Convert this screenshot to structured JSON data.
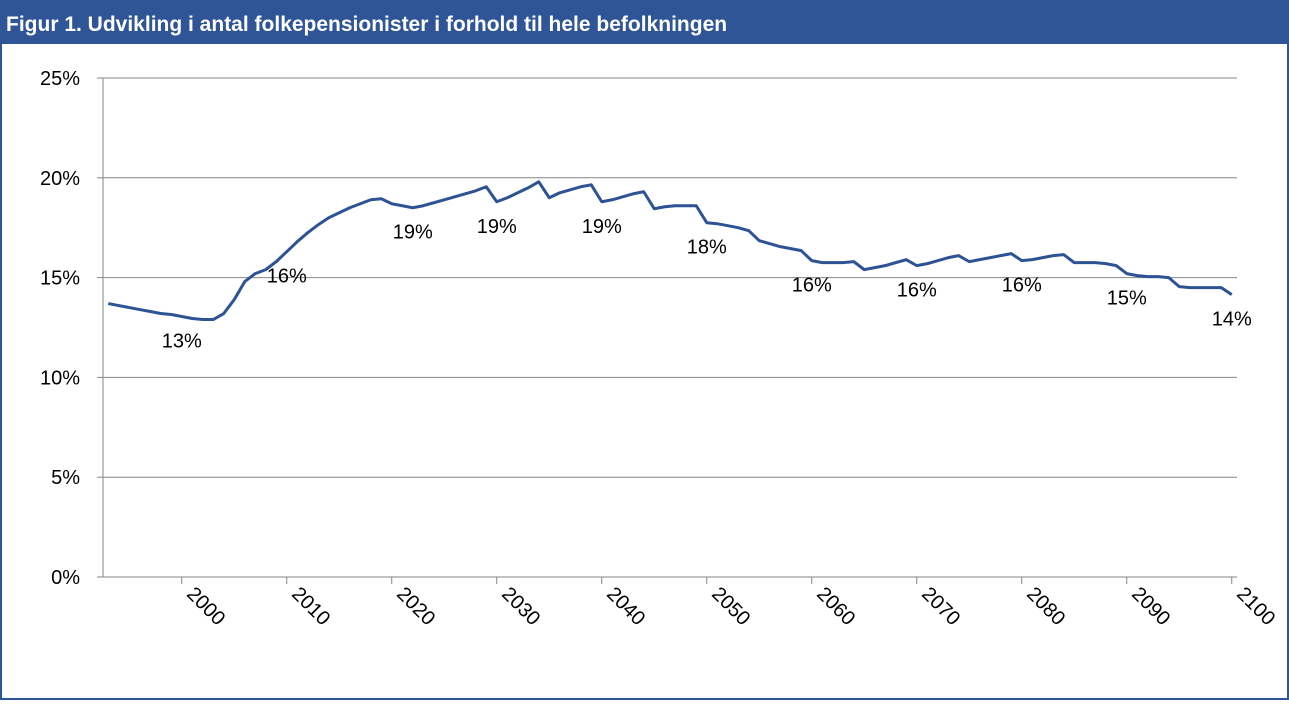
{
  "chart_data": {
    "type": "line",
    "title": "Figur 1. Udvikling i antal folkepensionister i forhold til hele befolkningen",
    "x": [
      1993,
      1994,
      1995,
      1996,
      1997,
      1998,
      1999,
      2000,
      2001,
      2002,
      2003,
      2004,
      2005,
      2006,
      2007,
      2008,
      2009,
      2010,
      2011,
      2012,
      2013,
      2014,
      2015,
      2016,
      2017,
      2018,
      2019,
      2020,
      2021,
      2022,
      2023,
      2024,
      2025,
      2026,
      2027,
      2028,
      2029,
      2030,
      2031,
      2032,
      2033,
      2034,
      2035,
      2036,
      2037,
      2038,
      2039,
      2040,
      2041,
      2042,
      2043,
      2044,
      2045,
      2046,
      2047,
      2048,
      2049,
      2050,
      2051,
      2052,
      2053,
      2054,
      2055,
      2056,
      2057,
      2058,
      2059,
      2060,
      2061,
      2062,
      2063,
      2064,
      2065,
      2066,
      2067,
      2068,
      2069,
      2070,
      2071,
      2072,
      2073,
      2074,
      2075,
      2076,
      2077,
      2078,
      2079,
      2080,
      2081,
      2082,
      2083,
      2084,
      2085,
      2086,
      2087,
      2088,
      2089,
      2090,
      2091,
      2092,
      2093,
      2094,
      2095,
      2096,
      2097,
      2098,
      2099,
      2100
    ],
    "series": [
      {
        "color": "#2e5395",
        "values": [
          13.7,
          13.6,
          13.5,
          13.4,
          13.3,
          13.2,
          13.15,
          13.05,
          12.95,
          12.9,
          12.9,
          13.2,
          13.9,
          14.8,
          15.2,
          15.4,
          15.8,
          16.3,
          16.8,
          17.25,
          17.65,
          18.0,
          18.25,
          18.5,
          18.7,
          18.9,
          18.95,
          18.7,
          18.6,
          18.5,
          18.6,
          18.75,
          18.9,
          19.05,
          19.2,
          19.35,
          19.55,
          18.8,
          19.0,
          19.25,
          19.5,
          19.8,
          19.0,
          19.25,
          19.4,
          19.55,
          19.65,
          18.8,
          18.9,
          19.05,
          19.2,
          19.3,
          18.45,
          18.55,
          18.6,
          18.6,
          18.6,
          17.75,
          17.7,
          17.6,
          17.5,
          17.35,
          16.85,
          16.7,
          16.55,
          16.45,
          16.35,
          15.85,
          15.75,
          15.75,
          15.75,
          15.8,
          15.4,
          15.5,
          15.6,
          15.75,
          15.9,
          15.6,
          15.7,
          15.85,
          16.0,
          16.1,
          15.8,
          15.9,
          16.0,
          16.1,
          16.2,
          15.85,
          15.9,
          16.0,
          16.1,
          16.15,
          15.75,
          15.75,
          15.75,
          15.7,
          15.6,
          15.2,
          15.1,
          15.05,
          15.05,
          15.0,
          14.55,
          14.5,
          14.5,
          14.5,
          14.5,
          14.15
        ],
        "value_labels": [
          null,
          null,
          null,
          null,
          null,
          null,
          null,
          "13%",
          null,
          null,
          null,
          null,
          null,
          null,
          null,
          null,
          null,
          "16%",
          null,
          null,
          null,
          null,
          null,
          null,
          null,
          null,
          null,
          null,
          null,
          "19%",
          null,
          null,
          null,
          null,
          null,
          null,
          null,
          "19%",
          null,
          null,
          null,
          null,
          null,
          null,
          null,
          null,
          null,
          "19%",
          null,
          null,
          null,
          null,
          null,
          null,
          null,
          null,
          null,
          "18%",
          null,
          null,
          null,
          null,
          null,
          null,
          null,
          null,
          null,
          "16%",
          null,
          null,
          null,
          null,
          null,
          null,
          null,
          null,
          null,
          "16%",
          null,
          null,
          null,
          null,
          null,
          null,
          null,
          null,
          null,
          "16%",
          null,
          null,
          null,
          null,
          null,
          null,
          null,
          null,
          null,
          "15%",
          null,
          null,
          null,
          null,
          null,
          null,
          null,
          null,
          null,
          "14%"
        ]
      }
    ],
    "xlim": [
      1992.5,
      2100.5
    ],
    "xticks": [
      2000,
      2010,
      2020,
      2030,
      2040,
      2050,
      2060,
      2070,
      2080,
      2090,
      2100
    ],
    "ylim": [
      0,
      25
    ],
    "yticks": [
      {
        "value": 0,
        "label": "0%"
      },
      {
        "value": 5,
        "label": "5%"
      },
      {
        "value": 10,
        "label": "10%"
      },
      {
        "value": 15,
        "label": "15%"
      },
      {
        "value": 20,
        "label": "20%"
      },
      {
        "value": 25,
        "label": "25%"
      }
    ],
    "grid": true
  }
}
